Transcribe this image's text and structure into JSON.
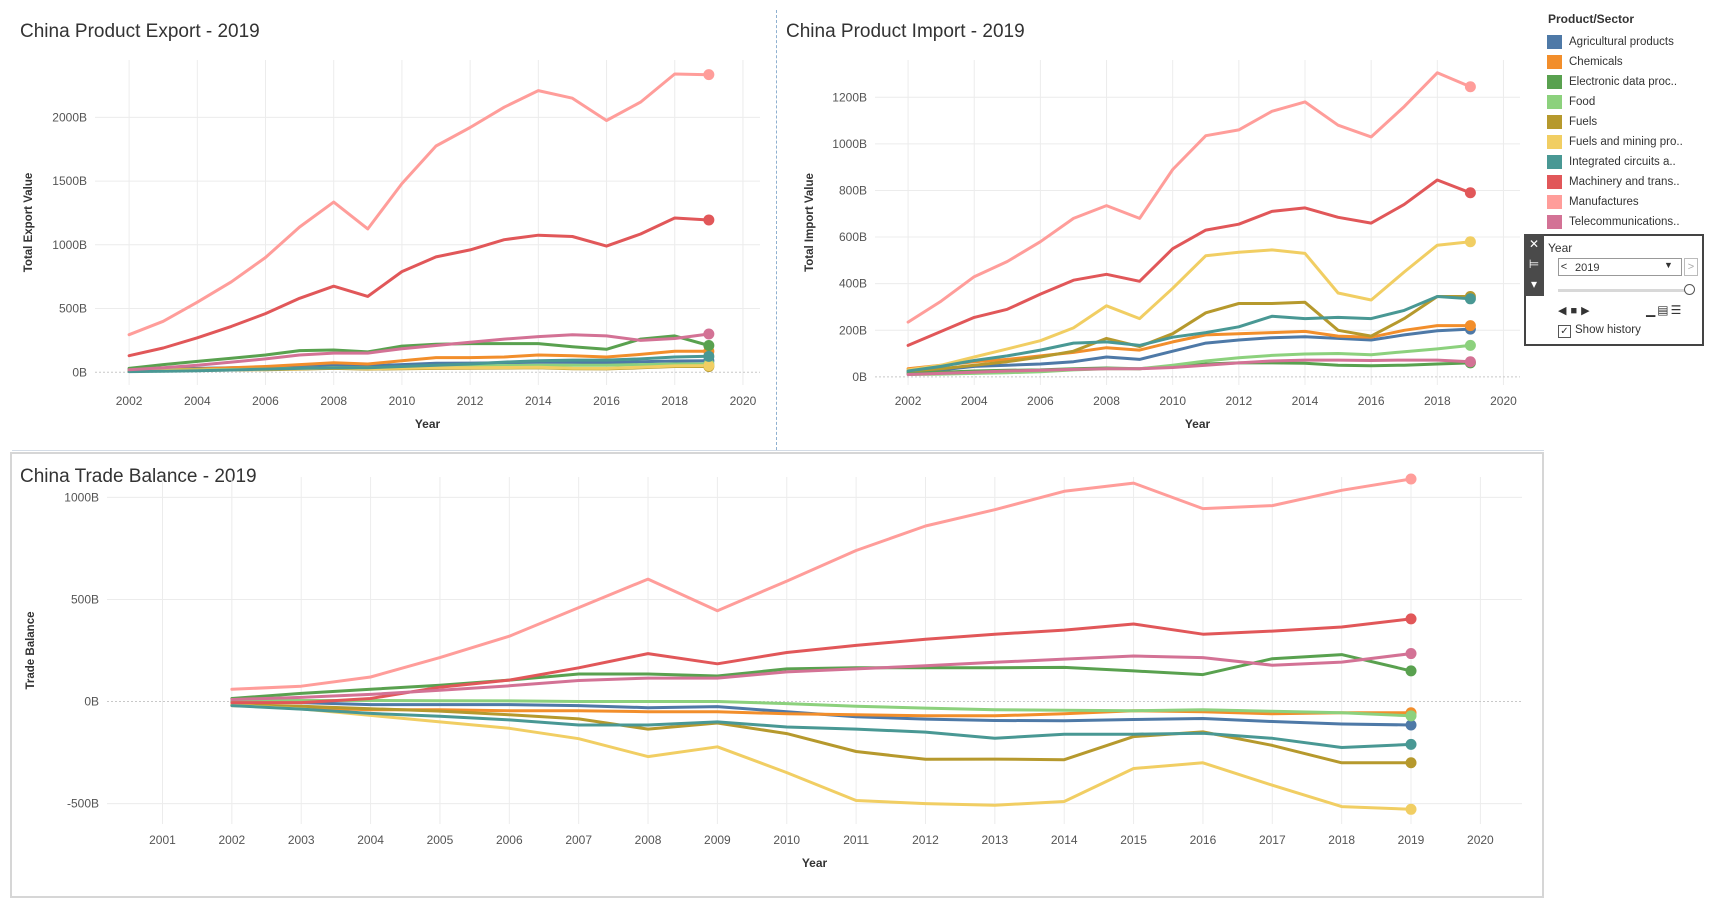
{
  "legend": {
    "title": "Product/Sector",
    "items": [
      {
        "label": "Agricultural products",
        "color": "#4e79a7"
      },
      {
        "label": "Chemicals",
        "color": "#f28e2b"
      },
      {
        "label": "Electronic data proc..",
        "color": "#59a14f"
      },
      {
        "label": "Food",
        "color": "#8cd17d"
      },
      {
        "label": "Fuels",
        "color": "#b6992d"
      },
      {
        "label": "Fuels and mining pro..",
        "color": "#f1ce63"
      },
      {
        "label": "Integrated circuits a..",
        "color": "#499894"
      },
      {
        "label": "Machinery and trans..",
        "color": "#e15759"
      },
      {
        "label": "Manufactures",
        "color": "#ff9d9a"
      },
      {
        "label": "Telecommunications..",
        "color": "#d37295"
      }
    ]
  },
  "year_filter": {
    "title": "Year",
    "selected": "2019",
    "prev": "<",
    "next": ">",
    "show_history_label": "Show history",
    "show_history_checked": true
  },
  "chart_data": [
    {
      "type": "line",
      "title": "China Product Export - 2019",
      "xlabel": "Year",
      "ylabel": "Total Export Value",
      "xlim": [
        2001,
        2020.5
      ],
      "ylim": [
        -100,
        2450
      ],
      "xticks": [
        "2002",
        "2004",
        "2006",
        "2008",
        "2010",
        "2012",
        "2014",
        "2016",
        "2018",
        "2020"
      ],
      "yticks": [
        {
          "v": 0,
          "label": "0B"
        },
        {
          "v": 500,
          "label": "500B"
        },
        {
          "v": 1000,
          "label": "1000B"
        },
        {
          "v": 1500,
          "label": "1500B"
        },
        {
          "v": 2000,
          "label": "2000B"
        }
      ],
      "x": [
        2002,
        2003,
        2004,
        2005,
        2006,
        2007,
        2008,
        2009,
        2010,
        2011,
        2012,
        2013,
        2014,
        2015,
        2016,
        2017,
        2018,
        2019
      ],
      "series": [
        {
          "name": "Agricultural products",
          "color": "#4e79a7",
          "values": [
            20,
            25,
            30,
            35,
            40,
            45,
            55,
            50,
            60,
            70,
            72,
            75,
            78,
            77,
            75,
            82,
            88,
            90
          ]
        },
        {
          "name": "Chemicals",
          "color": "#f28e2b",
          "values": [
            15,
            20,
            25,
            35,
            45,
            60,
            75,
            65,
            90,
            115,
            115,
            120,
            135,
            130,
            120,
            140,
            165,
            165
          ]
        },
        {
          "name": "Electronic data proc..",
          "color": "#59a14f",
          "values": [
            30,
            60,
            85,
            110,
            135,
            170,
            175,
            160,
            205,
            220,
            225,
            225,
            225,
            200,
            180,
            260,
            285,
            210
          ]
        },
        {
          "name": "Food",
          "color": "#8cd17d",
          "values": [
            15,
            17,
            20,
            22,
            25,
            30,
            35,
            35,
            40,
            45,
            50,
            52,
            55,
            55,
            55,
            60,
            65,
            65
          ]
        },
        {
          "name": "Fuels",
          "color": "#b6992d",
          "values": [
            10,
            12,
            15,
            18,
            20,
            25,
            30,
            25,
            28,
            30,
            32,
            33,
            35,
            28,
            26,
            35,
            45,
            45
          ]
        },
        {
          "name": "Fuels and mining pro..",
          "color": "#f1ce63",
          "values": [
            12,
            14,
            17,
            20,
            24,
            28,
            35,
            28,
            32,
            35,
            35,
            37,
            40,
            32,
            30,
            40,
            50,
            52
          ]
        },
        {
          "name": "Integrated circuits a..",
          "color": "#499894",
          "values": [
            5,
            8,
            12,
            18,
            25,
            30,
            35,
            35,
            45,
            55,
            65,
            80,
            90,
            95,
            95,
            105,
            120,
            125
          ]
        },
        {
          "name": "Machinery and trans..",
          "color": "#e15759",
          "values": [
            130,
            190,
            270,
            360,
            460,
            580,
            675,
            595,
            790,
            905,
            960,
            1040,
            1075,
            1065,
            990,
            1085,
            1210,
            1195
          ]
        },
        {
          "name": "Manufactures",
          "color": "#ff9d9a",
          "values": [
            295,
            400,
            550,
            710,
            900,
            1140,
            1335,
            1125,
            1480,
            1775,
            1920,
            2080,
            2210,
            2150,
            1975,
            2120,
            2340,
            2335
          ]
        },
        {
          "name": "Telecommunications..",
          "color": "#d37295",
          "values": [
            20,
            35,
            55,
            80,
            105,
            135,
            150,
            150,
            185,
            210,
            235,
            260,
            280,
            295,
            285,
            250,
            265,
            300
          ]
        }
      ]
    },
    {
      "type": "line",
      "title": "China Product Import - 2019",
      "xlabel": "Year",
      "ylabel": "Total Import Value",
      "xlim": [
        2001,
        2020.5
      ],
      "ylim": [
        -35,
        1360
      ],
      "xticks": [
        "2002",
        "2004",
        "2006",
        "2008",
        "2010",
        "2012",
        "2014",
        "2016",
        "2018",
        "2020"
      ],
      "yticks": [
        {
          "v": 0,
          "label": "0B"
        },
        {
          "v": 200,
          "label": "200B"
        },
        {
          "v": 400,
          "label": "400B"
        },
        {
          "v": 600,
          "label": "600B"
        },
        {
          "v": 800,
          "label": "800B"
        },
        {
          "v": 1000,
          "label": "1000B"
        },
        {
          "v": 1200,
          "label": "1200B"
        }
      ],
      "x": [
        2002,
        2003,
        2004,
        2005,
        2006,
        2007,
        2008,
        2009,
        2010,
        2011,
        2012,
        2013,
        2014,
        2015,
        2016,
        2017,
        2018,
        2019
      ],
      "series": [
        {
          "name": "Agricultural products",
          "color": "#4e79a7",
          "values": [
            20,
            30,
            45,
            50,
            55,
            65,
            85,
            75,
            110,
            145,
            158,
            168,
            172,
            165,
            158,
            180,
            198,
            205
          ]
        },
        {
          "name": "Chemicals",
          "color": "#f28e2b",
          "values": [
            35,
            50,
            65,
            75,
            90,
            105,
            125,
            115,
            150,
            180,
            185,
            190,
            195,
            175,
            170,
            200,
            220,
            220
          ]
        },
        {
          "name": "Electronic data proc..",
          "color": "#59a14f",
          "values": [
            15,
            20,
            25,
            28,
            30,
            35,
            38,
            35,
            45,
            55,
            60,
            60,
            58,
            50,
            48,
            50,
            55,
            60
          ]
        },
        {
          "name": "Food",
          "color": "#8cd17d",
          "values": [
            10,
            12,
            15,
            18,
            22,
            30,
            35,
            35,
            50,
            68,
            82,
            92,
            98,
            100,
            95,
            108,
            120,
            135
          ]
        },
        {
          "name": "Fuels",
          "color": "#b6992d",
          "values": [
            25,
            35,
            50,
            65,
            85,
            110,
            165,
            130,
            185,
            275,
            315,
            315,
            320,
            200,
            175,
            250,
            345,
            345
          ]
        },
        {
          "name": "Fuels and mining pro..",
          "color": "#f1ce63",
          "values": [
            30,
            50,
            85,
            120,
            155,
            210,
            305,
            250,
            380,
            520,
            535,
            545,
            530,
            360,
            330,
            450,
            565,
            580
          ]
        },
        {
          "name": "Integrated circuits a..",
          "color": "#499894",
          "values": [
            25,
            45,
            70,
            90,
            115,
            145,
            150,
            135,
            170,
            190,
            215,
            260,
            250,
            255,
            250,
            285,
            345,
            335
          ]
        },
        {
          "name": "Machinery and trans..",
          "color": "#e15759",
          "values": [
            135,
            195,
            255,
            290,
            355,
            415,
            440,
            410,
            550,
            630,
            655,
            710,
            725,
            685,
            660,
            740,
            845,
            790
          ]
        },
        {
          "name": "Manufactures",
          "color": "#ff9d9a",
          "values": [
            235,
            325,
            430,
            495,
            580,
            680,
            735,
            680,
            890,
            1035,
            1060,
            1140,
            1180,
            1080,
            1030,
            1160,
            1305,
            1245
          ]
        },
        {
          "name": "Telecommunications..",
          "color": "#d37295",
          "values": [
            10,
            15,
            20,
            25,
            28,
            32,
            35,
            35,
            40,
            50,
            60,
            68,
            72,
            72,
            70,
            72,
            72,
            65
          ]
        }
      ]
    },
    {
      "type": "line",
      "title": "China Trade Balance - 2019",
      "xlabel": "Year",
      "ylabel": "Trade Balance",
      "xlim": [
        2000.2,
        2020.6
      ],
      "ylim": [
        -600,
        1100
      ],
      "xticks": [
        "2001",
        "2002",
        "2003",
        "2004",
        "2005",
        "2006",
        "2007",
        "2008",
        "2009",
        "2010",
        "2011",
        "2012",
        "2013",
        "2014",
        "2015",
        "2016",
        "2017",
        "2018",
        "2019",
        "2020"
      ],
      "yticks": [
        {
          "v": -500,
          "label": "-500B"
        },
        {
          "v": 0,
          "label": "0B"
        },
        {
          "v": 500,
          "label": "500B"
        },
        {
          "v": 1000,
          "label": "1000B"
        }
      ],
      "x": [
        2002,
        2003,
        2004,
        2005,
        2006,
        2007,
        2008,
        2009,
        2010,
        2011,
        2012,
        2013,
        2014,
        2015,
        2016,
        2017,
        2018,
        2019
      ],
      "series": [
        {
          "name": "Agricultural products",
          "color": "#4e79a7",
          "values": [
            0,
            -5,
            -15,
            -15,
            -15,
            -20,
            -30,
            -25,
            -50,
            -75,
            -86,
            -93,
            -94,
            -88,
            -83,
            -98,
            -110,
            -115
          ]
        },
        {
          "name": "Chemicals",
          "color": "#f28e2b",
          "values": [
            -20,
            -30,
            -40,
            -40,
            -45,
            -45,
            -50,
            -50,
            -60,
            -65,
            -70,
            -70,
            -60,
            -45,
            -50,
            -60,
            -55,
            -55
          ]
        },
        {
          "name": "Electronic data proc..",
          "color": "#59a14f",
          "values": [
            15,
            40,
            60,
            80,
            105,
            135,
            135,
            125,
            160,
            165,
            165,
            165,
            167,
            150,
            132,
            210,
            230,
            150
          ]
        },
        {
          "name": "Food",
          "color": "#8cd17d",
          "values": [
            5,
            5,
            5,
            4,
            3,
            0,
            0,
            0,
            -10,
            -23,
            -32,
            -40,
            -43,
            -45,
            -40,
            -48,
            -55,
            -70
          ]
        },
        {
          "name": "Fuels",
          "color": "#b6992d",
          "values": [
            -15,
            -23,
            -35,
            -47,
            -65,
            -85,
            -135,
            -105,
            -157,
            -245,
            -283,
            -282,
            -285,
            -172,
            -149,
            -215,
            -300,
            -300
          ]
        },
        {
          "name": "Fuels and mining pro..",
          "color": "#f1ce63",
          "values": [
            -18,
            -36,
            -68,
            -100,
            -131,
            -182,
            -270,
            -222,
            -348,
            -485,
            -500,
            -508,
            -490,
            -328,
            -300,
            -410,
            -515,
            -528
          ]
        },
        {
          "name": "Integrated circuits a..",
          "color": "#499894",
          "values": [
            -20,
            -37,
            -58,
            -72,
            -90,
            -115,
            -115,
            -100,
            -125,
            -135,
            -150,
            -180,
            -160,
            -160,
            -155,
            -180,
            -225,
            -210
          ]
        },
        {
          "name": "Machinery and trans..",
          "color": "#e15759",
          "values": [
            -5,
            -5,
            15,
            70,
            105,
            165,
            235,
            185,
            240,
            275,
            305,
            330,
            350,
            380,
            330,
            345,
            365,
            405
          ]
        },
        {
          "name": "Manufactures",
          "color": "#ff9d9a",
          "values": [
            60,
            75,
            120,
            215,
            320,
            460,
            600,
            445,
            590,
            740,
            860,
            940,
            1030,
            1070,
            945,
            960,
            1035,
            1090
          ]
        },
        {
          "name": "Telecommunications..",
          "color": "#d37295",
          "values": [
            10,
            20,
            35,
            55,
            77,
            103,
            115,
            115,
            145,
            160,
            175,
            192,
            208,
            223,
            215,
            178,
            193,
            235
          ]
        }
      ]
    }
  ]
}
